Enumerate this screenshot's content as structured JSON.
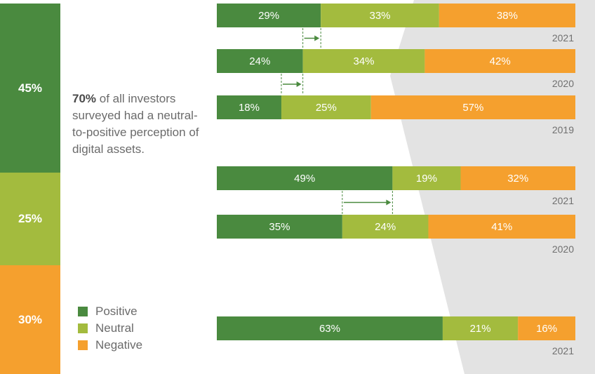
{
  "colors": {
    "positive": "#4a8a3f",
    "neutral": "#a3bb3e",
    "negative": "#f5a02e",
    "background_shape": "#e3e3e3",
    "year_text": "#707070",
    "arrow": "#4a8a3f"
  },
  "overall": {
    "segments": [
      {
        "key": "positive",
        "label": "45%",
        "value": 45
      },
      {
        "key": "neutral",
        "label": "25%",
        "value": 25
      },
      {
        "key": "negative",
        "label": "30%",
        "value": 30
      }
    ]
  },
  "callout": {
    "highlight": "70%",
    "text": " of all investors surveyed had a neutral-to-positive perception of digital assets."
  },
  "legend": {
    "items": [
      {
        "key": "positive",
        "label": "Positive"
      },
      {
        "key": "neutral",
        "label": "Neutral"
      },
      {
        "key": "negative",
        "label": "Negative"
      }
    ]
  },
  "chart_data": {
    "type": "bar",
    "stacked": true,
    "orientation": "horizontal",
    "series_keys": [
      "positive",
      "neutral",
      "negative"
    ],
    "series_names": [
      "Positive",
      "Neutral",
      "Negative"
    ],
    "groups": [
      {
        "rows": [
          {
            "year": "2021",
            "values": [
              29,
              33,
              38
            ]
          },
          {
            "year": "2020",
            "values": [
              24,
              34,
              42
            ]
          },
          {
            "year": "2019",
            "values": [
              18,
              25,
              57
            ]
          }
        ]
      },
      {
        "rows": [
          {
            "year": "2021",
            "values": [
              49,
              19,
              32
            ]
          },
          {
            "year": "2020",
            "values": [
              35,
              24,
              41
            ]
          }
        ]
      },
      {
        "rows": [
          {
            "year": "2021",
            "values": [
              63,
              21,
              16
            ]
          }
        ]
      }
    ],
    "arrows": [
      {
        "from_row": 1,
        "to_row": 0,
        "group": 0
      },
      {
        "from_row": 2,
        "to_row": 1,
        "group": 0
      },
      {
        "from_row": 1,
        "to_row": 0,
        "group": 1
      }
    ]
  }
}
